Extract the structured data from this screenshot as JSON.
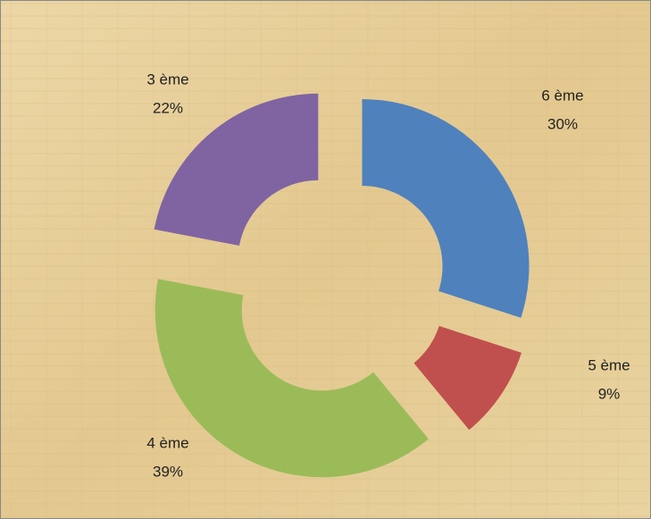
{
  "chart_data": {
    "type": "donut",
    "categories": [
      "6 ème",
      "5 ème",
      "4 ème",
      "3 ème"
    ],
    "values": [
      30,
      9,
      39,
      22
    ],
    "value_labels": [
      "30%",
      "9%",
      "39%",
      "22%"
    ],
    "colors": [
      "#4f81bd",
      "#c0504d",
      "#9bbb59",
      "#8064a2"
    ],
    "exploded": true
  }
}
